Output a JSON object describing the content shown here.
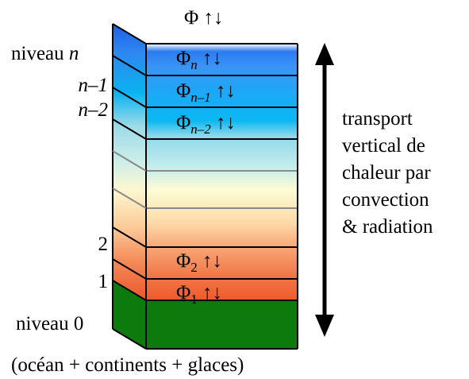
{
  "diagram": {
    "top_flux": "Φ ↑↓",
    "level_labels": {
      "top_word": "niveau",
      "top_var": "n",
      "n_minus_1": "n–1",
      "n_minus_2": "n–2",
      "two": "2",
      "one": "1",
      "zero": "niveau 0"
    },
    "flux_labels": [
      {
        "sym": "Φ",
        "sub": "n",
        "arrows": "↑↓"
      },
      {
        "sym": "Φ",
        "sub": "n–1",
        "arrows": "↑↓"
      },
      {
        "sym": "Φ",
        "sub": "n–2",
        "arrows": "↑↓"
      },
      {
        "sym": "Φ",
        "sub": "2",
        "arrows": "↑↓"
      },
      {
        "sym": "Φ",
        "sub": "1",
        "arrows": "↑↓"
      }
    ],
    "transport_lines": [
      "transport",
      "vertical de",
      "chaleur par",
      "convection",
      "& radiation"
    ],
    "bottom_caption": "(océan + continents + glaces)",
    "colors": {
      "ground": "#0d7a0d",
      "upper_blue": "#0aa5f2",
      "top_blue": "#1a66ee",
      "mid_cyan": "#a8e6f0",
      "pale_yellow": "#fffbd8",
      "orange": "#f7a070",
      "red_orange": "#ee5a2c"
    }
  }
}
